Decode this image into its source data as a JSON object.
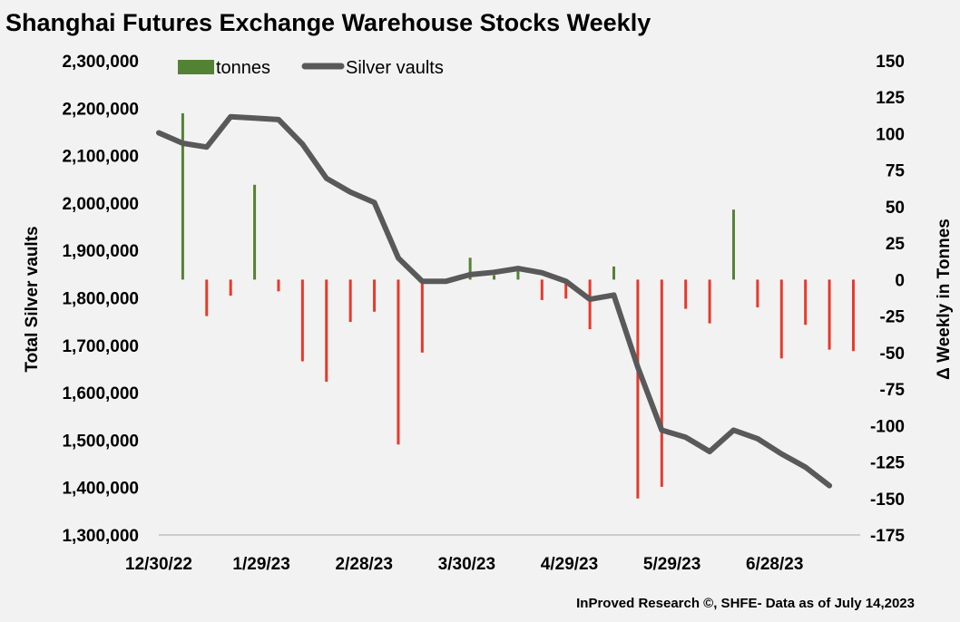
{
  "chart_data": {
    "type": "bar+line",
    "title": "Shanghai Futures Exchange Warehouse Stocks Weekly",
    "source": "InProved Research ©, SHFE- Data as of July 14,2023",
    "ylabel_left": "Total Silver vaults",
    "ylabel_right": "Δ Weekly in Tonnes",
    "y_left": {
      "range": [
        1300000,
        2300000
      ],
      "ticks": [
        1300000,
        1400000,
        1500000,
        1600000,
        1700000,
        1800000,
        1900000,
        2000000,
        2100000,
        2200000,
        2300000
      ],
      "tick_labels": [
        "1,300,000",
        "1,400,000",
        "1,500,000",
        "1,600,000",
        "1,700,000",
        "1,800,000",
        "1,900,000",
        "2,000,000",
        "2,100,000",
        "2,200,000",
        "2,300,000"
      ]
    },
    "y_right": {
      "range": [
        -175,
        150
      ],
      "ticks": [
        -175,
        -150,
        -125,
        -100,
        -75,
        -50,
        -25,
        0,
        25,
        50,
        75,
        100,
        125,
        150
      ],
      "tick_labels": [
        "-175",
        "-150",
        "-125",
        "-100",
        "-75",
        "-50",
        "-25",
        "0",
        "25",
        "50",
        "75",
        "100",
        "125",
        "150"
      ]
    },
    "x_ticks": [
      {
        "day": 0,
        "label": "12/30/22"
      },
      {
        "day": 30,
        "label": "1/29/23"
      },
      {
        "day": 60,
        "label": "2/28/23"
      },
      {
        "day": 90,
        "label": "3/30/23"
      },
      {
        "day": 120,
        "label": "4/29/23"
      },
      {
        "day": 150,
        "label": "5/29/23"
      },
      {
        "day": 180,
        "label": "6/28/23"
      }
    ],
    "x_range": [
      0,
      205
    ],
    "legend": [
      {
        "label": "tonnes",
        "color": "#548235"
      },
      {
        "label": "Silver vaults",
        "color": "#595959"
      }
    ],
    "colors": {
      "positive": "#548235",
      "negative": "#e8392b",
      "line": "#595959"
    },
    "series": [
      {
        "name": "Silver vaults",
        "kind": "line",
        "axis": "left",
        "x": [
          0,
          7,
          14,
          21,
          28,
          35,
          42,
          49,
          56,
          63,
          70,
          77,
          84,
          91,
          98,
          105,
          112,
          119,
          126,
          133,
          140,
          147,
          154,
          161,
          168,
          175,
          182,
          189,
          196
        ],
        "values": [
          2148000,
          2126000,
          2118000,
          2182000,
          2179000,
          2176000,
          2124000,
          2052000,
          2023000,
          2001000,
          1884000,
          1835000,
          1835000,
          1849000,
          1854000,
          1862000,
          1853000,
          1835000,
          1797000,
          1806000,
          1654000,
          1521000,
          1506000,
          1476000,
          1521000,
          1503000,
          1471000,
          1443000,
          1404000
        ]
      },
      {
        "name": "tonnes",
        "kind": "bar",
        "axis": "right",
        "x": [
          7,
          14,
          21,
          28,
          35,
          42,
          49,
          56,
          63,
          70,
          77,
          84,
          91,
          98,
          105,
          112,
          119,
          126,
          133,
          140,
          147,
          154,
          161,
          168,
          175,
          182,
          189,
          196,
          203
        ],
        "values": [
          114,
          -25,
          -11,
          65,
          -8,
          -56,
          -70,
          -29,
          -22,
          -113,
          -50,
          -2,
          15,
          3,
          8,
          -14,
          -13,
          -34,
          9,
          -150,
          -142,
          -20,
          -30,
          48,
          -19,
          -54,
          -31,
          -48,
          -49
        ]
      }
    ]
  }
}
